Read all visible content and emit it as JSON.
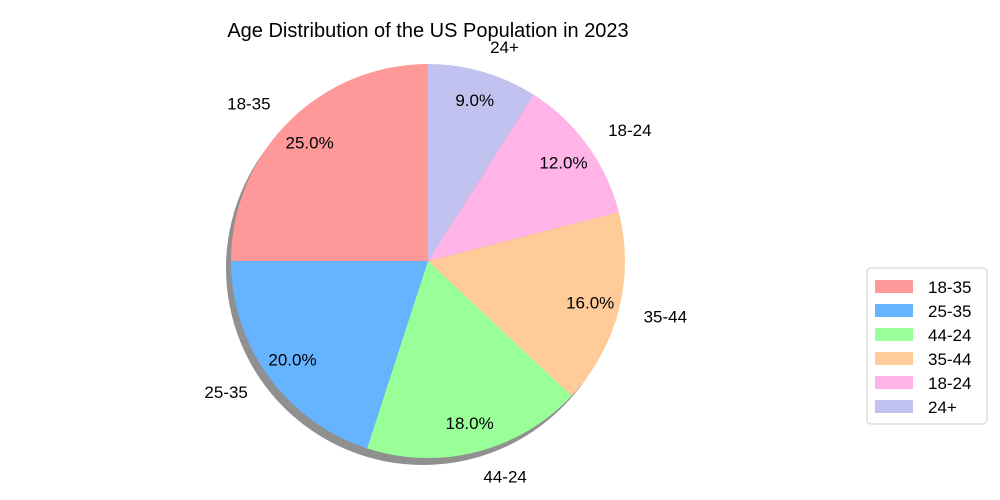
{
  "chart_data": {
    "type": "pie",
    "title": "Age Distribution of the US Population in 2023",
    "start_angle_deg": 90,
    "direction": "counterclockwise",
    "shadow": true,
    "legend_position": "lower-right",
    "slices": [
      {
        "label": "18-35",
        "value": 25.0,
        "pct_label": "25.0%",
        "color": "#ff9999"
      },
      {
        "label": "25-35",
        "value": 20.0,
        "pct_label": "20.0%",
        "color": "#66b3ff"
      },
      {
        "label": "44-24",
        "value": 18.0,
        "pct_label": "18.0%",
        "color": "#99ff99"
      },
      {
        "label": "35-44",
        "value": 16.0,
        "pct_label": "16.0%",
        "color": "#ffcc99"
      },
      {
        "label": "18-24",
        "value": 12.0,
        "pct_label": "12.0%",
        "color": "#ffb3e6"
      },
      {
        "label": "24+",
        "value": 9.0,
        "pct_label": "9.0%",
        "color": "#c2c2f0"
      }
    ]
  }
}
